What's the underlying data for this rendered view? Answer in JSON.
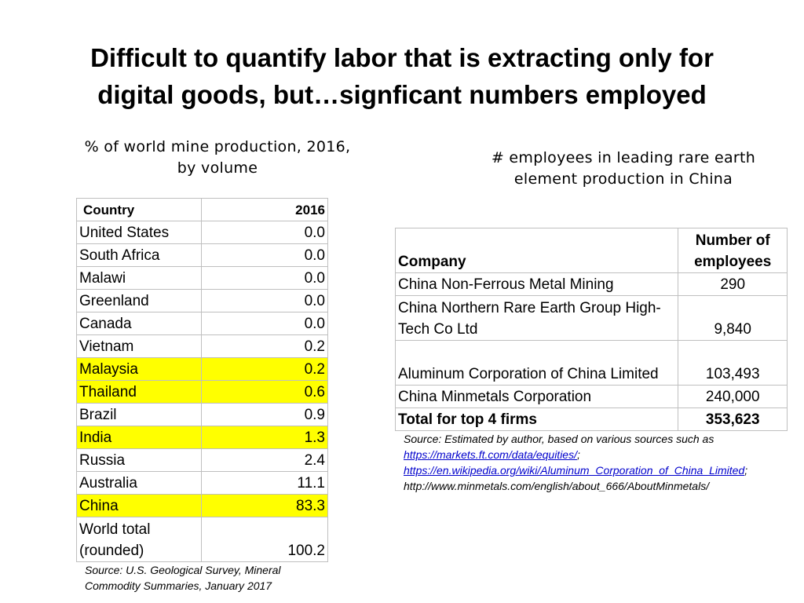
{
  "title": {
    "line1": "Difficult to quantify labor that is extracting only for",
    "line2": "digital goods, but…signficant numbers employed"
  },
  "left_panel": {
    "subtitle": "% of world mine production, 2016, by volume",
    "headers": [
      "Country",
      "2016"
    ],
    "rows": [
      {
        "country": "United States",
        "value": "0.0",
        "highlight": false
      },
      {
        "country": "South Africa",
        "value": "0.0",
        "highlight": false
      },
      {
        "country": "Malawi",
        "value": "0.0",
        "highlight": false
      },
      {
        "country": "Greenland",
        "value": "0.0",
        "highlight": false
      },
      {
        "country": "Canada",
        "value": "0.0",
        "highlight": false
      },
      {
        "country": "Vietnam",
        "value": "0.2",
        "highlight": false
      },
      {
        "country": "Malaysia",
        "value": "0.2",
        "highlight": true
      },
      {
        "country": "Thailand",
        "value": "0.6",
        "highlight": true
      },
      {
        "country": "Brazil",
        "value": "0.9",
        "highlight": false
      },
      {
        "country": "India",
        "value": "1.3",
        "highlight": true
      },
      {
        "country": "Russia",
        "value": "2.4",
        "highlight": false
      },
      {
        "country": "Australia",
        "value": "11.1",
        "highlight": false
      },
      {
        "country": "China",
        "value": "83.3",
        "highlight": true
      }
    ],
    "total": {
      "label": "World total (rounded)",
      "value": "100.2"
    },
    "source": "Source: U.S. Geological Survey, Mineral Commodity Summaries, January 2017"
  },
  "right_panel": {
    "subtitle": "# employees in leading rare earth element production in China",
    "headers": [
      "Company",
      "Number of employees"
    ],
    "rows": [
      {
        "company": "China Non-Ferrous Metal Mining",
        "employees": "290"
      },
      {
        "company": "China Northern Rare Earth Group High-Tech Co Ltd",
        "employees": "9,840"
      },
      {
        "company": "Aluminum Corporation of China Limited",
        "employees": "103,493"
      },
      {
        "company": "China Minmetals Corporation",
        "employees": "240,000"
      }
    ],
    "total": {
      "label": "Total for top 4 firms",
      "value": "353,623"
    },
    "source": {
      "intro": "Source: Estimated by author, based on various sources such as",
      "link1": "https://markets.ft.com/data/equities/",
      "link2": "https://en.wikipedia.org/wiki/Aluminum_Corporation_of_China_Limited",
      "link3": "http://www.minmetals.com/english/about_666/AboutMinmetals/",
      "separator": ";"
    }
  },
  "colors": {
    "highlight": "#ffff00",
    "link": "#0000cc",
    "border": "#bfbfbf"
  }
}
